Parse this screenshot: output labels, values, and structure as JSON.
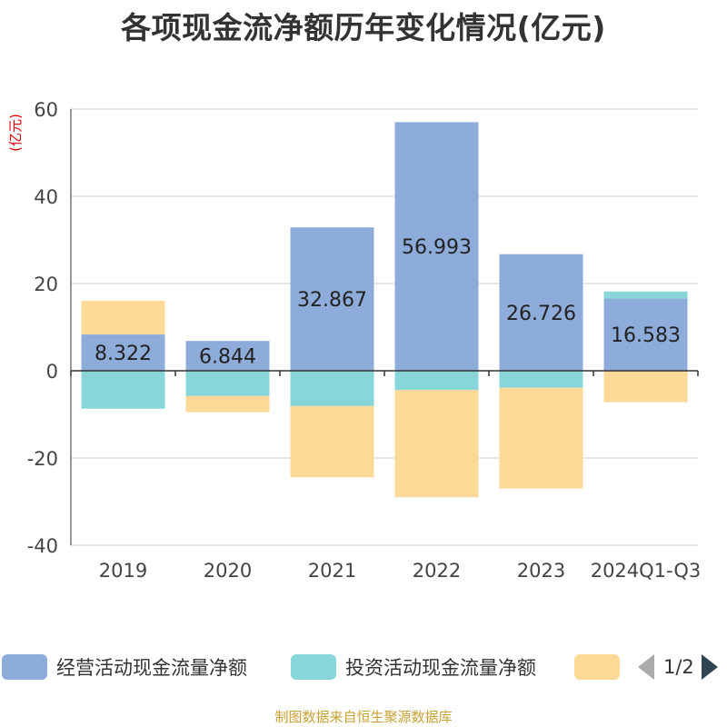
{
  "title": "各项现金流净额历年变化情况(亿元)",
  "source": "制图数据来自恒生聚源数据库",
  "legend": {
    "items": [
      {
        "name": "经营活动现金流量净额",
        "color": "#8eacda"
      },
      {
        "name": "投资活动现金流量净额",
        "color": "#88d6d9"
      },
      {
        "name": "",
        "color": "#fdd998"
      }
    ],
    "page": "1/2"
  },
  "chart_data": {
    "type": "bar",
    "stacked": true,
    "title": "各项现金流净额历年变化情况(亿元)",
    "ylabel": "(亿元)",
    "ylim": [
      -40,
      60
    ],
    "yticks": [
      -40,
      -20,
      0,
      20,
      40,
      60
    ],
    "categories": [
      "2019",
      "2020",
      "2021",
      "2022",
      "2023",
      "2024Q1-Q3"
    ],
    "series": [
      {
        "name": "经营活动现金流量净额",
        "color": "#8eacda",
        "values": [
          8.322,
          6.844,
          32.867,
          56.993,
          26.726,
          16.583
        ],
        "labels": [
          "8.322",
          "6.844",
          "32.867",
          "56.993",
          "26.726",
          "16.583"
        ]
      },
      {
        "name": "投资活动现金流量净额",
        "color": "#88d6d9",
        "values": [
          -8.7,
          -5.8,
          -8.1,
          -4.4,
          -3.9,
          1.6
        ]
      },
      {
        "name": "",
        "color": "#fdd998",
        "values": [
          7.7,
          -3.7,
          -16.3,
          -24.6,
          -23.1,
          -7.2
        ]
      }
    ],
    "grid": true
  }
}
